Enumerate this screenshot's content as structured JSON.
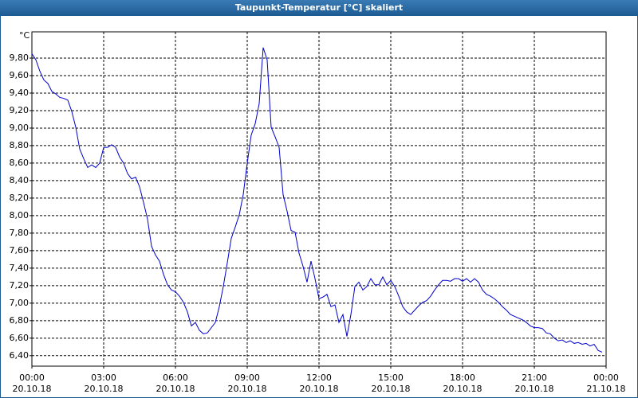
{
  "chart_data": {
    "type": "line",
    "title": "Taupunkt-Temperatur [°C] skaliert",
    "y_unit": "°C",
    "x": [
      0,
      10,
      20,
      30,
      40,
      50,
      60,
      70,
      80,
      90,
      100,
      110,
      120,
      130,
      140,
      150,
      160,
      170,
      180,
      190,
      200,
      210,
      220,
      230,
      240,
      250,
      260,
      270,
      280,
      290,
      300,
      310,
      320,
      330,
      340,
      350,
      360,
      370,
      380,
      390,
      400,
      410,
      420,
      430,
      440,
      450,
      460,
      470,
      480,
      490,
      500,
      510,
      520,
      530,
      540,
      550,
      560,
      570,
      580,
      590,
      600,
      610,
      620,
      630,
      640,
      650,
      660,
      670,
      680,
      690,
      700,
      710,
      720,
      730,
      740,
      750,
      760,
      770,
      780,
      790,
      800,
      810,
      820,
      830,
      840,
      850,
      860,
      870,
      880,
      890,
      900,
      910,
      920,
      930,
      940,
      950,
      960,
      970,
      980,
      990,
      1000,
      1010,
      1020,
      1030,
      1040,
      1050,
      1060,
      1070,
      1080,
      1090,
      1100,
      1110,
      1120,
      1130,
      1140,
      1150,
      1160,
      1170,
      1180,
      1190,
      1200,
      1210,
      1220,
      1230,
      1240,
      1250,
      1260,
      1270,
      1280,
      1290,
      1300,
      1310,
      1320,
      1330,
      1340,
      1350,
      1360,
      1370,
      1380,
      1390,
      1400,
      1410,
      1420,
      1430
    ],
    "series": [
      {
        "name": "Taupunkt-Temperatur",
        "color": "#0000cc",
        "values": [
          9.85,
          9.78,
          9.65,
          9.55,
          9.51,
          9.42,
          9.39,
          9.35,
          9.34,
          9.32,
          9.19,
          9.01,
          8.76,
          8.65,
          8.55,
          8.58,
          8.55,
          8.6,
          8.78,
          8.78,
          8.81,
          8.78,
          8.67,
          8.6,
          8.48,
          8.42,
          8.44,
          8.33,
          8.15,
          7.96,
          7.65,
          7.55,
          7.48,
          7.33,
          7.21,
          7.15,
          7.13,
          7.08,
          7.01,
          6.9,
          6.74,
          6.78,
          6.69,
          6.65,
          6.66,
          6.72,
          6.78,
          6.96,
          7.19,
          7.46,
          7.74,
          7.87,
          8.01,
          8.24,
          8.6,
          8.92,
          9.05,
          9.28,
          9.92,
          9.78,
          9.01,
          8.9,
          8.78,
          8.24,
          8.05,
          7.83,
          7.81,
          7.57,
          7.42,
          7.24,
          7.48,
          7.28,
          7.05,
          7.07,
          7.1,
          6.96,
          6.98,
          6.78,
          6.87,
          6.62,
          6.87,
          7.19,
          7.24,
          7.15,
          7.19,
          7.28,
          7.21,
          7.21,
          7.3,
          7.21,
          7.26,
          7.19,
          7.08,
          6.96,
          6.9,
          6.87,
          6.92,
          6.97,
          7.01,
          7.03,
          7.08,
          7.15,
          7.21,
          7.26,
          7.26,
          7.25,
          7.28,
          7.28,
          7.25,
          7.28,
          7.24,
          7.28,
          7.24,
          7.15,
          7.1,
          7.08,
          7.05,
          7.01,
          6.96,
          6.92,
          6.87,
          6.85,
          6.83,
          6.81,
          6.78,
          6.74,
          6.72,
          6.72,
          6.71,
          6.66,
          6.65,
          6.6,
          6.57,
          6.58,
          6.55,
          6.57,
          6.54,
          6.55,
          6.53,
          6.54,
          6.51,
          6.53,
          6.46,
          6.44
        ]
      }
    ],
    "xlim": [
      0,
      1440
    ],
    "xticks": [
      {
        "value": 0,
        "label": "00:00 20.10.18"
      },
      {
        "value": 180,
        "label": "03:00 20.10.18"
      },
      {
        "value": 360,
        "label": "06:00 20.10.18"
      },
      {
        "value": 540,
        "label": "09:00 20.10.18"
      },
      {
        "value": 720,
        "label": "12:00 20.10.18"
      },
      {
        "value": 900,
        "label": "15:00 20.10.18"
      },
      {
        "value": 1080,
        "label": "18:00 20.10.18"
      },
      {
        "value": 1260,
        "label": "21:00 20.10.18"
      },
      {
        "value": 1440,
        "label": "00:00 21.10.18"
      }
    ],
    "ylim": [
      6.28,
      10.1
    ],
    "yticks": [
      {
        "value": 6.4,
        "label": "6,40"
      },
      {
        "value": 6.6,
        "label": "6,60"
      },
      {
        "value": 6.8,
        "label": "6,80"
      },
      {
        "value": 7.0,
        "label": "7,00"
      },
      {
        "value": 7.2,
        "label": "7,20"
      },
      {
        "value": 7.4,
        "label": "7,40"
      },
      {
        "value": 7.6,
        "label": "7,60"
      },
      {
        "value": 7.8,
        "label": "7,80"
      },
      {
        "value": 8.0,
        "label": "8,00"
      },
      {
        "value": 8.2,
        "label": "8,20"
      },
      {
        "value": 8.4,
        "label": "8,40"
      },
      {
        "value": 8.6,
        "label": "8,60"
      },
      {
        "value": 8.8,
        "label": "8,80"
      },
      {
        "value": 9.0,
        "label": "9,00"
      },
      {
        "value": 9.2,
        "label": "9,20"
      },
      {
        "value": 9.4,
        "label": "9,40"
      },
      {
        "value": 9.6,
        "label": "9,60"
      },
      {
        "value": 9.8,
        "label": "9,80"
      }
    ],
    "grid": true
  }
}
